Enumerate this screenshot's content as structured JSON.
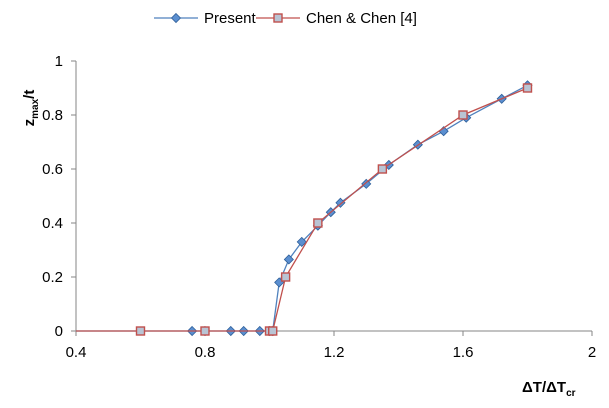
{
  "chart_data": {
    "type": "line",
    "title": "",
    "xlabel": {
      "main": "ΔT/ΔT",
      "sub": "cr"
    },
    "ylabel": {
      "main": "z",
      "sub": "max",
      "tail": "/t"
    },
    "xlim": [
      0.4,
      2
    ],
    "ylim": [
      0,
      1
    ],
    "xticks": [
      0.4,
      0.8,
      1.2,
      1.6,
      2
    ],
    "xtick_labels": [
      "0.4",
      "0.8",
      "1.2",
      "1.6",
      "2"
    ],
    "yticks": [
      0,
      0.2,
      0.4,
      0.6,
      0.8,
      1
    ],
    "ytick_labels": [
      "0",
      "0.2",
      "0.4",
      "0.6",
      "0.8",
      "1"
    ],
    "grid": false,
    "legend_position": "top-center",
    "series": [
      {
        "name": "Present",
        "color": "#4f81bd",
        "marker": "diamond",
        "x": [
          0.4,
          0.76,
          0.8,
          0.88,
          0.92,
          0.97,
          1.0,
          1.01,
          1.03,
          1.06,
          1.1,
          1.15,
          1.19,
          1.22,
          1.3,
          1.37,
          1.46,
          1.54,
          1.61,
          1.72,
          1.8
        ],
        "y": [
          0,
          0,
          0,
          0,
          0,
          0,
          0,
          0,
          0.18,
          0.265,
          0.33,
          0.39,
          0.44,
          0.475,
          0.545,
          0.615,
          0.69,
          0.74,
          0.79,
          0.86,
          0.91
        ]
      },
      {
        "name": "Chen & Chen [4]",
        "color": "#c0504d",
        "marker": "square",
        "x": [
          0.4,
          0.6,
          0.8,
          1.0,
          1.01,
          1.05,
          1.15,
          1.35,
          1.6,
          1.8
        ],
        "y": [
          0,
          0,
          0,
          0,
          0,
          0.2,
          0.4,
          0.6,
          0.8,
          0.9
        ]
      }
    ]
  }
}
